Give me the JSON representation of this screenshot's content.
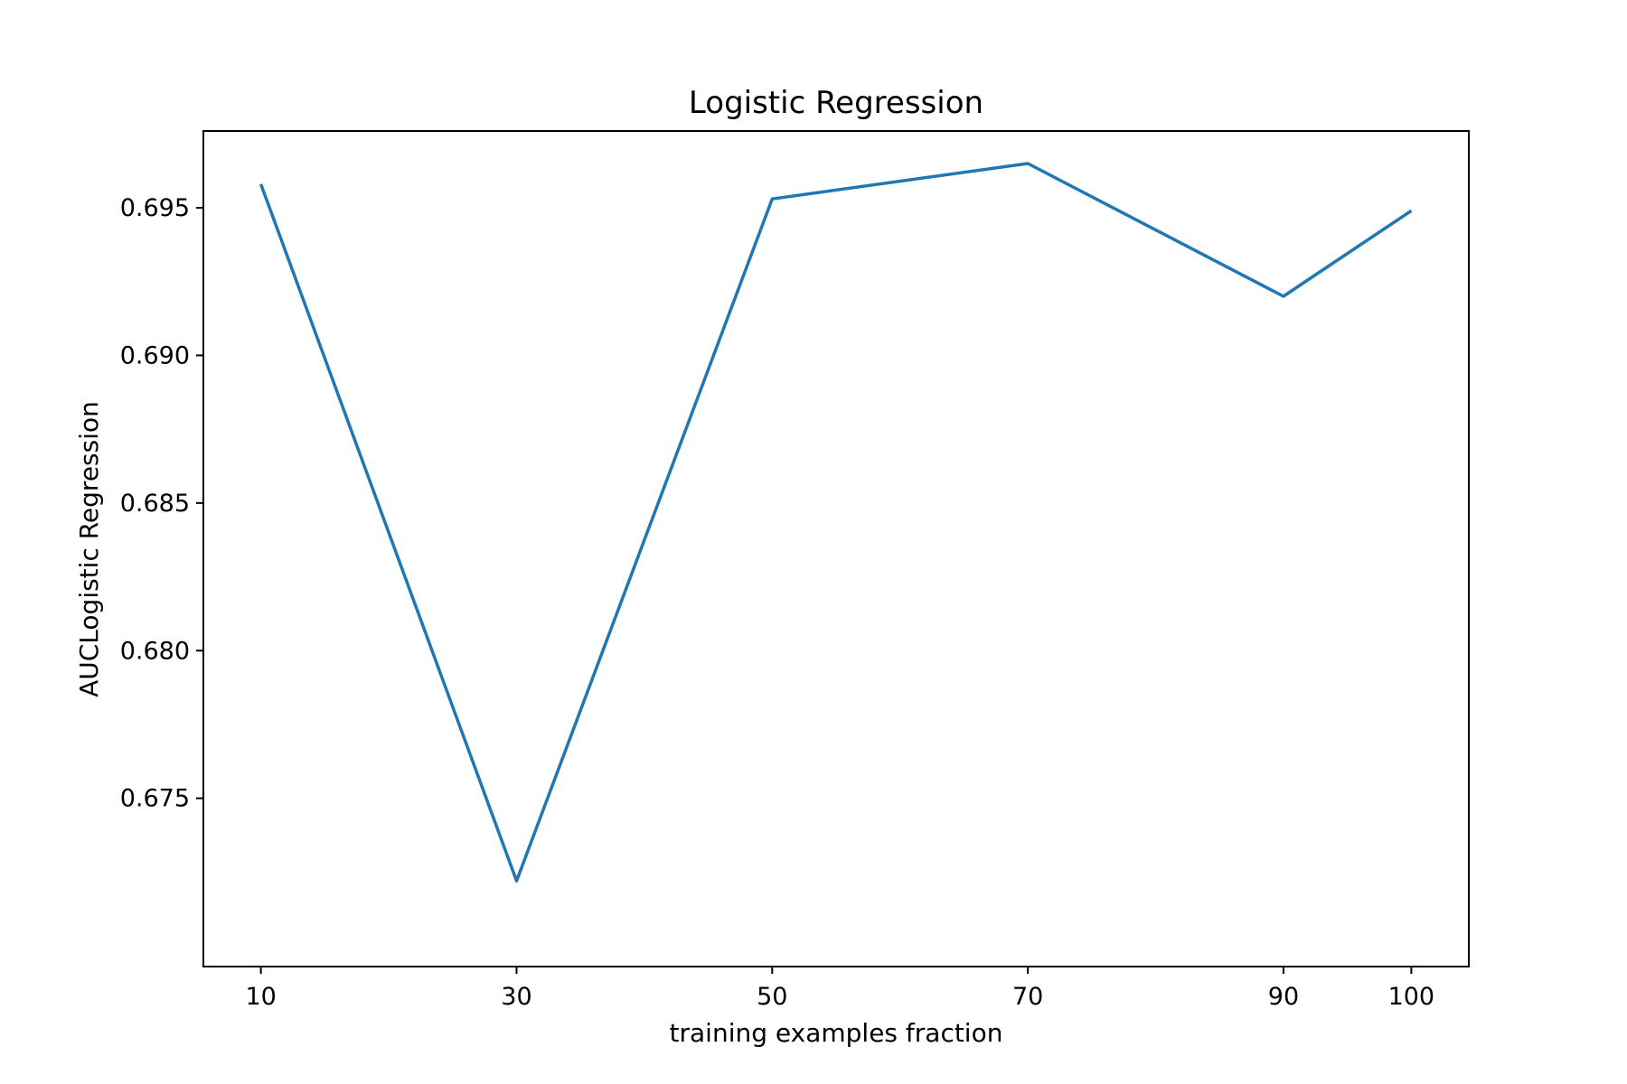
{
  "chart_data": {
    "type": "line",
    "title": "Logistic Regression",
    "xlabel": "training examples fraction",
    "ylabel": "AUCLogistic Regression",
    "x": [
      10,
      30,
      50,
      70,
      90,
      100
    ],
    "x_ticks": [
      "10",
      "30",
      "50",
      "70",
      "90",
      "100"
    ],
    "y_ticks": [
      "0.675",
      "0.680",
      "0.685",
      "0.690",
      "0.695"
    ],
    "xlim": [
      5.5,
      104.5
    ],
    "ylim": [
      0.6693,
      0.6976
    ],
    "series": [
      {
        "values": [
          0.6958,
          0.6722,
          0.6953,
          0.6965,
          0.692,
          0.6949
        ],
        "color": "#1f77b4"
      }
    ],
    "grid": false,
    "legend": "none"
  }
}
